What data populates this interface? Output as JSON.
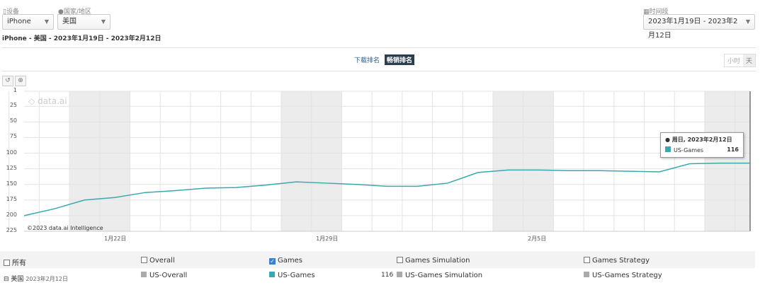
{
  "filters": {
    "device": {
      "label": "设备",
      "value": "iPhone",
      "icon": "phone-icon"
    },
    "country": {
      "label": "国家/地区",
      "value": "美国",
      "icon": "globe-icon"
    },
    "period": {
      "label": "时间段",
      "value": "2023年1月19日 - 2023年2月12日",
      "icon": "calendar-icon"
    }
  },
  "subtitle": "iPhone - 美国 - 2023年1月19日 - 2023年2月12日",
  "tabs": [
    {
      "label": "下载排名",
      "active": false
    },
    {
      "label": "畅销排名",
      "active": true
    }
  ],
  "granularity": [
    {
      "label": "小时",
      "active": false
    },
    {
      "label": "天",
      "active": true
    }
  ],
  "watermark": "data.ai",
  "credit": "©2023 data.ai Intelligence",
  "tooltip": {
    "date": "周日, 2023年2月12日",
    "series": "US-Games",
    "value": "116"
  },
  "chart_data": {
    "type": "line",
    "y_reversed": true,
    "ylim": [
      1,
      225
    ],
    "yticks": [
      1,
      25,
      50,
      75,
      100,
      125,
      150,
      175,
      200,
      225
    ],
    "xticks": [
      "1月22日",
      "1月29日",
      "2月5日"
    ],
    "x": [
      "2023-01-19",
      "2023-01-20",
      "2023-01-21",
      "2023-01-22",
      "2023-01-23",
      "2023-01-24",
      "2023-01-25",
      "2023-01-26",
      "2023-01-27",
      "2023-01-28",
      "2023-01-29",
      "2023-01-30",
      "2023-01-31",
      "2023-02-01",
      "2023-02-02",
      "2023-02-03",
      "2023-02-04",
      "2023-02-05",
      "2023-02-06",
      "2023-02-07",
      "2023-02-08",
      "2023-02-09",
      "2023-02-10",
      "2023-02-11",
      "2023-02-12"
    ],
    "series": [
      {
        "name": "US-Games",
        "color": "#3aa8b0",
        "values": [
          200,
          189,
          175,
          171,
          163,
          160,
          156,
          155,
          151,
          146,
          148,
          150,
          153,
          153,
          148,
          131,
          127,
          127,
          128,
          128,
          129,
          130,
          117,
          116,
          116
        ]
      }
    ],
    "weekend_shading": true,
    "grid": true
  },
  "legend": {
    "all_label": "所有",
    "categories": [
      {
        "label": "Overall",
        "checked": false
      },
      {
        "label": "Games",
        "checked": true
      },
      {
        "label": "Games Simulation",
        "checked": false
      },
      {
        "label": "Games Strategy",
        "checked": false
      }
    ],
    "row_country": "美国",
    "row_date": "2023年2月12日",
    "items": [
      {
        "label": "US-Overall",
        "color": "#aaaaaa",
        "value": ""
      },
      {
        "label": "US-Games",
        "color": "#3aa8b0",
        "value": "116"
      },
      {
        "label": "US-Games Simulation",
        "color": "#aaaaaa",
        "value": ""
      },
      {
        "label": "US-Games Strategy",
        "color": "#aaaaaa",
        "value": ""
      }
    ]
  }
}
